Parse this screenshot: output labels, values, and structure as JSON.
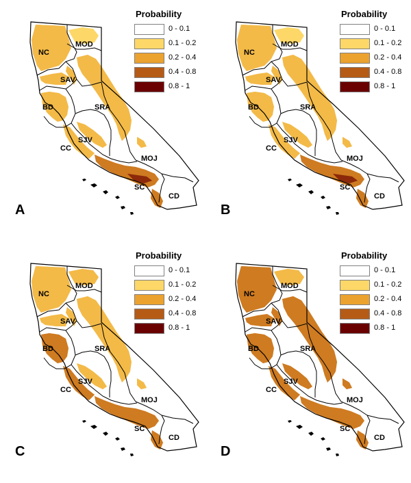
{
  "legend": {
    "title": "Probability",
    "classes": [
      {
        "label": "0 - 0.1",
        "color": "#ffffff"
      },
      {
        "label": "0.1 - 0.2",
        "color": "#fdd868"
      },
      {
        "label": "0.2 - 0.4",
        "color": "#eba22f"
      },
      {
        "label": "0.4 - 0.8",
        "color": "#b65b16"
      },
      {
        "label": "0.8 - 1",
        "color": "#6b0000"
      }
    ]
  },
  "regions": {
    "nc": "NC",
    "mod": "MOD",
    "sav": "SAV",
    "bd": "BD",
    "sra": "SRA",
    "sjv": "SJV",
    "cc": "CC",
    "moj": "MOJ",
    "sc": "SC",
    "cd": "CD"
  },
  "panels": [
    {
      "letter": "A",
      "coast_level": 2,
      "sierra_level": 2,
      "north_level": 2,
      "south_level": 3,
      "hotspot_level": 4,
      "modoc_level": 1
    },
    {
      "letter": "B",
      "coast_level": 2,
      "sierra_level": 2,
      "north_level": 2,
      "south_level": 3,
      "hotspot_level": 4,
      "modoc_level": 1
    },
    {
      "letter": "C",
      "coast_level": 3,
      "sierra_level": 2,
      "north_level": 2,
      "south_level": 3,
      "hotspot_level": 3,
      "modoc_level": 2
    },
    {
      "letter": "D",
      "coast_level": 3,
      "sierra_level": 3,
      "north_level": 3,
      "south_level": 3,
      "hotspot_level": 3,
      "modoc_level": 2
    }
  ]
}
